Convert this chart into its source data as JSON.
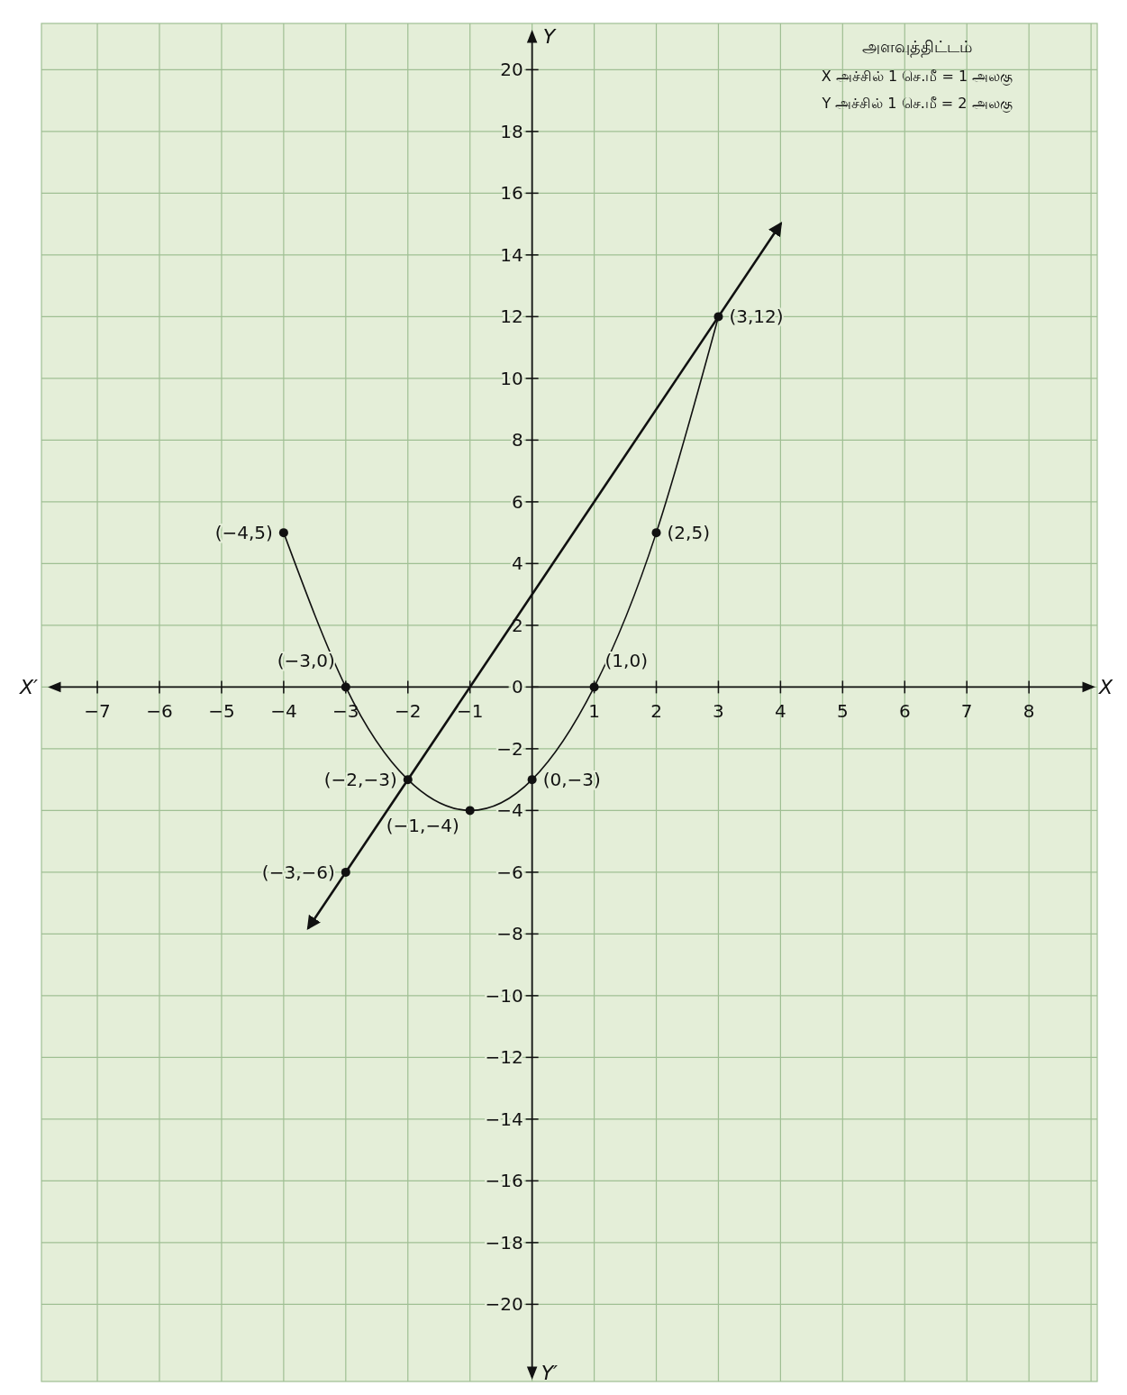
{
  "chart_data": {
    "type": "line",
    "title": "அளவுத்திட்டம்",
    "xlabel": "X",
    "ylabel": "Y",
    "xlim": [
      -7.9,
      9.1
    ],
    "ylim": [
      -22.5,
      21.5
    ],
    "xticks": [
      -7,
      -6,
      -5,
      -4,
      -3,
      -2,
      -1,
      1,
      2,
      3,
      4,
      5,
      6,
      7,
      8
    ],
    "yticks": [
      -20,
      -18,
      -16,
      -14,
      -12,
      -10,
      -8,
      -6,
      -4,
      -2,
      0,
      2,
      4,
      6,
      8,
      10,
      12,
      14,
      16,
      18,
      20
    ],
    "grid": true,
    "series": [
      {
        "color": "#111111",
        "marker": "circle",
        "x": [
          -4,
          -3,
          -2,
          -1,
          0,
          1,
          2,
          3
        ],
        "values": [
          5,
          0,
          -3,
          -4,
          -3,
          0,
          5,
          12
        ]
      },
      {
        "color": "#111111",
        "marker": "none",
        "x": [
          -3.6,
          4
        ],
        "values": [
          -7.8,
          15
        ]
      },
      {
        "type": "scatter",
        "color": "#111111",
        "marker": "circle",
        "x": [
          -3
        ],
        "values": [
          -6
        ]
      }
    ],
    "annotations": [
      "X அச்சில் 1 செ.மீ = 1 அலகு",
      "Y அச்சில் 1 செ.மீ = 2 அலகு",
      "X′",
      "Y′",
      {
        "text": "(−4,5)",
        "x": -4,
        "y": 5
      },
      {
        "text": "(−3,0)",
        "x": -3,
        "y": 0
      },
      {
        "text": "(−2,−3)",
        "x": -2,
        "y": -3
      },
      {
        "text": "(−1,−4)",
        "x": -1,
        "y": -4
      },
      {
        "text": "(0,−3)",
        "x": 0,
        "y": -3
      },
      {
        "text": "(1,0)",
        "x": 1,
        "y": 0
      },
      {
        "text": "(2,5)",
        "x": 2,
        "y": 5
      },
      {
        "text": "(3,12)",
        "x": 3,
        "y": 12
      },
      {
        "text": "(−3,−6)",
        "x": -3,
        "y": -6
      }
    ]
  }
}
